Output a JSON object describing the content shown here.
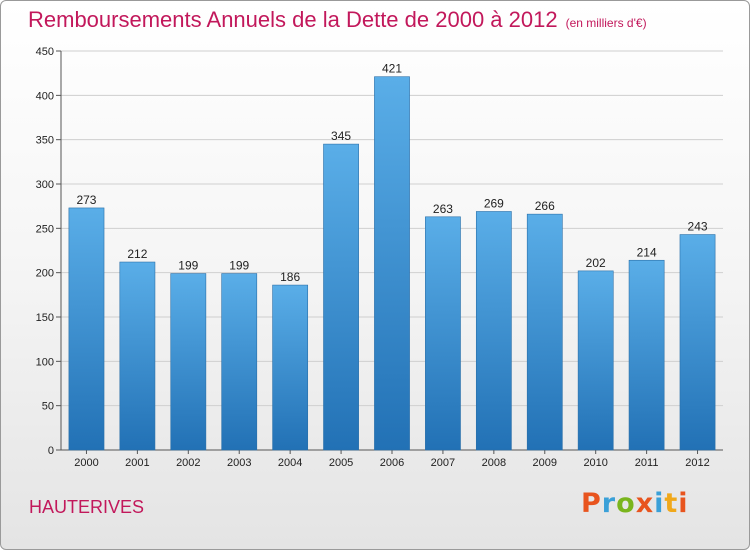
{
  "header": {
    "title": "Remboursements Annuels de la Dette de 2000 à 2012",
    "unit": "(en milliers d'€)"
  },
  "footer": {
    "town": "HAUTERIVES",
    "logo_text": "Proxiti"
  },
  "colors": {
    "title": "#c2185b",
    "bar_top": "#5aaee8",
    "bar_bottom": "#2271b5",
    "grid": "#cfcfcf",
    "logo": [
      "#e8541e",
      "#3aa0d8",
      "#7ab51d",
      "#e8541e",
      "#3aa0d8",
      "#f0a81a",
      "#e8541e"
    ]
  },
  "chart_data": {
    "type": "bar",
    "title": "Remboursements Annuels de la Dette de 2000 à 2012",
    "subtitle": "(en milliers d'€)",
    "categories": [
      "2000",
      "2001",
      "2002",
      "2003",
      "2004",
      "2005",
      "2006",
      "2007",
      "2008",
      "2009",
      "2010",
      "2011",
      "2012"
    ],
    "values": [
      273,
      212,
      199,
      199,
      186,
      345,
      421,
      263,
      269,
      266,
      202,
      214,
      243
    ],
    "ylim": [
      0,
      450
    ],
    "yticks": [
      0,
      50,
      100,
      150,
      200,
      250,
      300,
      350,
      400,
      450
    ],
    "grid": true,
    "legend": "none"
  }
}
